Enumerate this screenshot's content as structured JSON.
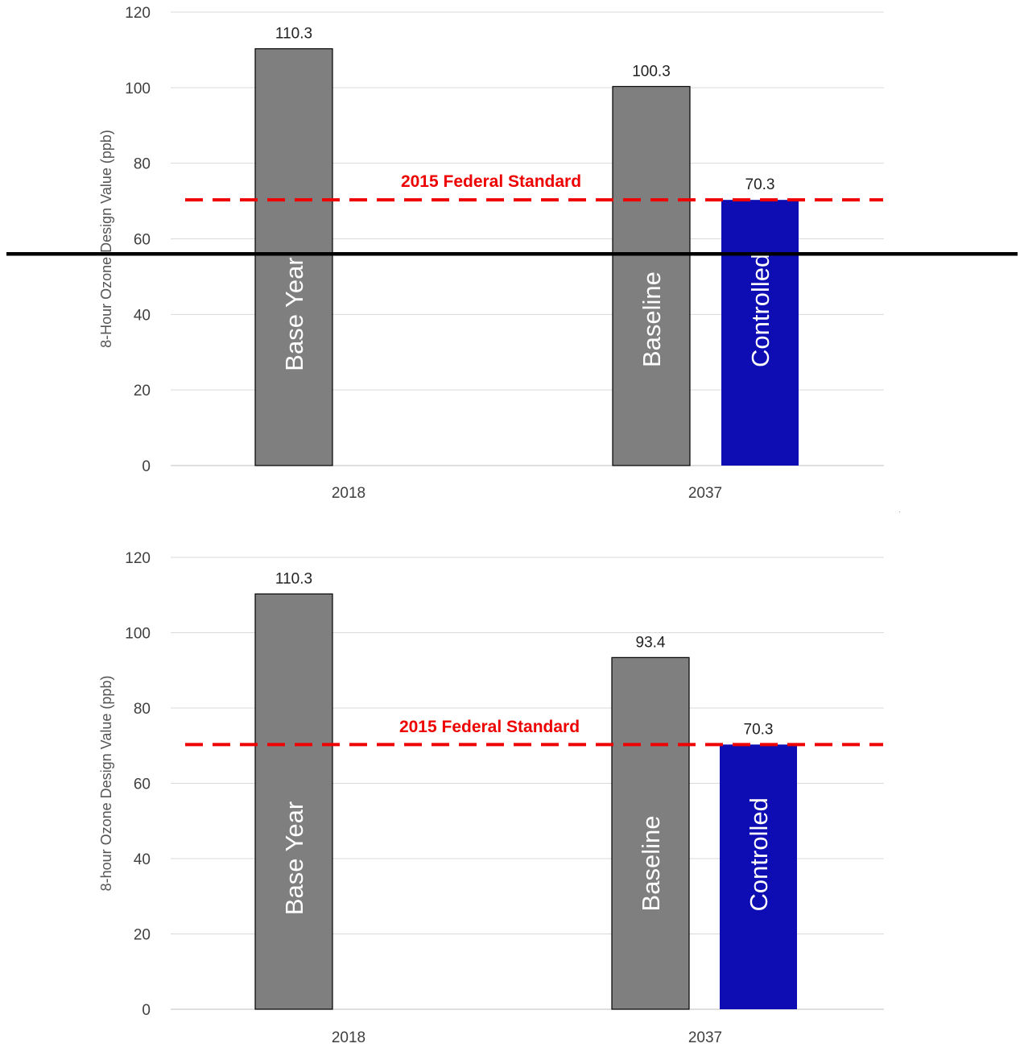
{
  "chart_data": [
    {
      "type": "bar",
      "categories": [
        "2018",
        "2037"
      ],
      "ylabel": "8-Hour Ozone Design Value (ppb)",
      "ylim": [
        0,
        120
      ],
      "yticks": [
        0,
        20,
        40,
        60,
        80,
        100,
        120
      ],
      "grid": true,
      "bars": [
        {
          "category": "2018",
          "label": "Base Year",
          "value": 110.3,
          "value_label": "110.3",
          "color": "#7f7f7f"
        },
        {
          "category": "2037",
          "label": "Baseline",
          "value": 100.3,
          "value_label": "100.3",
          "color": "#7f7f7f"
        },
        {
          "category": "2037",
          "label": "Controlled",
          "value": 70.3,
          "value_label": "70.3",
          "color": "#0d0db3"
        }
      ],
      "reference_line": {
        "label": "2015 Federal Standard",
        "value": 70.3,
        "color": "#ee0000",
        "style": "dashed"
      },
      "overlay_line": {
        "value": 56,
        "color": "#000000",
        "style": "solid"
      }
    },
    {
      "type": "bar",
      "categories": [
        "2018",
        "2037"
      ],
      "ylabel": "8-hour Ozone Design Value (ppb)",
      "ylim": [
        0,
        120
      ],
      "yticks": [
        0,
        20,
        40,
        60,
        80,
        100,
        120
      ],
      "grid": true,
      "bars": [
        {
          "category": "2018",
          "label": "Base Year",
          "value": 110.3,
          "value_label": "110.3",
          "color": "#7f7f7f"
        },
        {
          "category": "2037",
          "label": "Baseline",
          "value": 93.4,
          "value_label": "93.4",
          "color": "#7f7f7f"
        },
        {
          "category": "2037",
          "label": "Controlled",
          "value": 70.3,
          "value_label": "70.3",
          "color": "#0d0db3"
        }
      ],
      "reference_line": {
        "label": "2015 Federal Standard",
        "value": 70.3,
        "color": "#ee0000",
        "style": "dashed"
      }
    }
  ]
}
